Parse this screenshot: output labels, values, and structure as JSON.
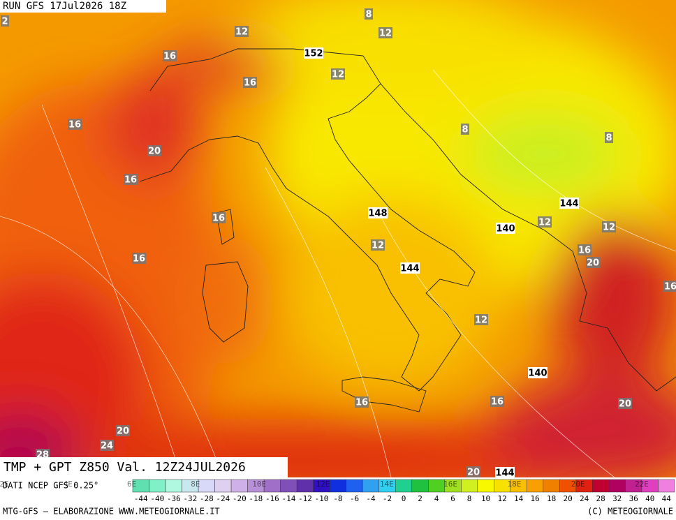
{
  "header": {
    "run": "RUN GFS 17Jul2026 18Z"
  },
  "map": {
    "labels": [
      "2",
      "8",
      "12",
      "12",
      "16",
      "152",
      "12",
      "16",
      "16",
      "8",
      "8",
      "20",
      "16",
      "148",
      "144",
      "16",
      "140",
      "12",
      "12",
      "12",
      "16",
      "20",
      "16",
      "144",
      "16",
      "12",
      "140",
      "16",
      "16",
      "20",
      "20",
      "24",
      "28",
      "20",
      "144"
    ]
  },
  "caption": "TMP + GPT Z850 Val. 12Z24JUL2026",
  "colorbar": {
    "source": "DATI NCEP GFS 0.25°",
    "longitudes": [
      "2E",
      "4E",
      "6E",
      "8E",
      "10E",
      "12E",
      "14E",
      "16E",
      "18E",
      "20E",
      "22E"
    ],
    "ticks": [
      "-44",
      "-40",
      "-36",
      "-32",
      "-28",
      "-24",
      "-20",
      "-18",
      "-16",
      "-14",
      "-12",
      "-10",
      "-8",
      "-6",
      "-4",
      "-2",
      "0",
      "2",
      "4",
      "6",
      "8",
      "10",
      "12",
      "14",
      "16",
      "18",
      "20",
      "24",
      "28",
      "32",
      "36",
      "40",
      "44"
    ],
    "colors": [
      "#60e0b0",
      "#80f0c8",
      "#b0f8e0",
      "#c8e8f0",
      "#d8d8f8",
      "#e0d0f0",
      "#d0b0e8",
      "#b890d8",
      "#a070c8",
      "#8050b8",
      "#6030a8",
      "#3010c0",
      "#1030e0",
      "#2060f0",
      "#30a0f0",
      "#30d0f0",
      "#20d090",
      "#20c040",
      "#50d020",
      "#a0e020",
      "#d0f020",
      "#f8f800",
      "#f8e000",
      "#f8c000",
      "#f8a000",
      "#f08000",
      "#f05000",
      "#e02010",
      "#c00030",
      "#b00060",
      "#c02090",
      "#e040c0",
      "#f080e0"
    ]
  },
  "footer": {
    "left": "MTG-GFS – ELABORAZIONE WWW.METEOGIORNALE.IT",
    "right": "(C) METEOGIORNALE"
  }
}
